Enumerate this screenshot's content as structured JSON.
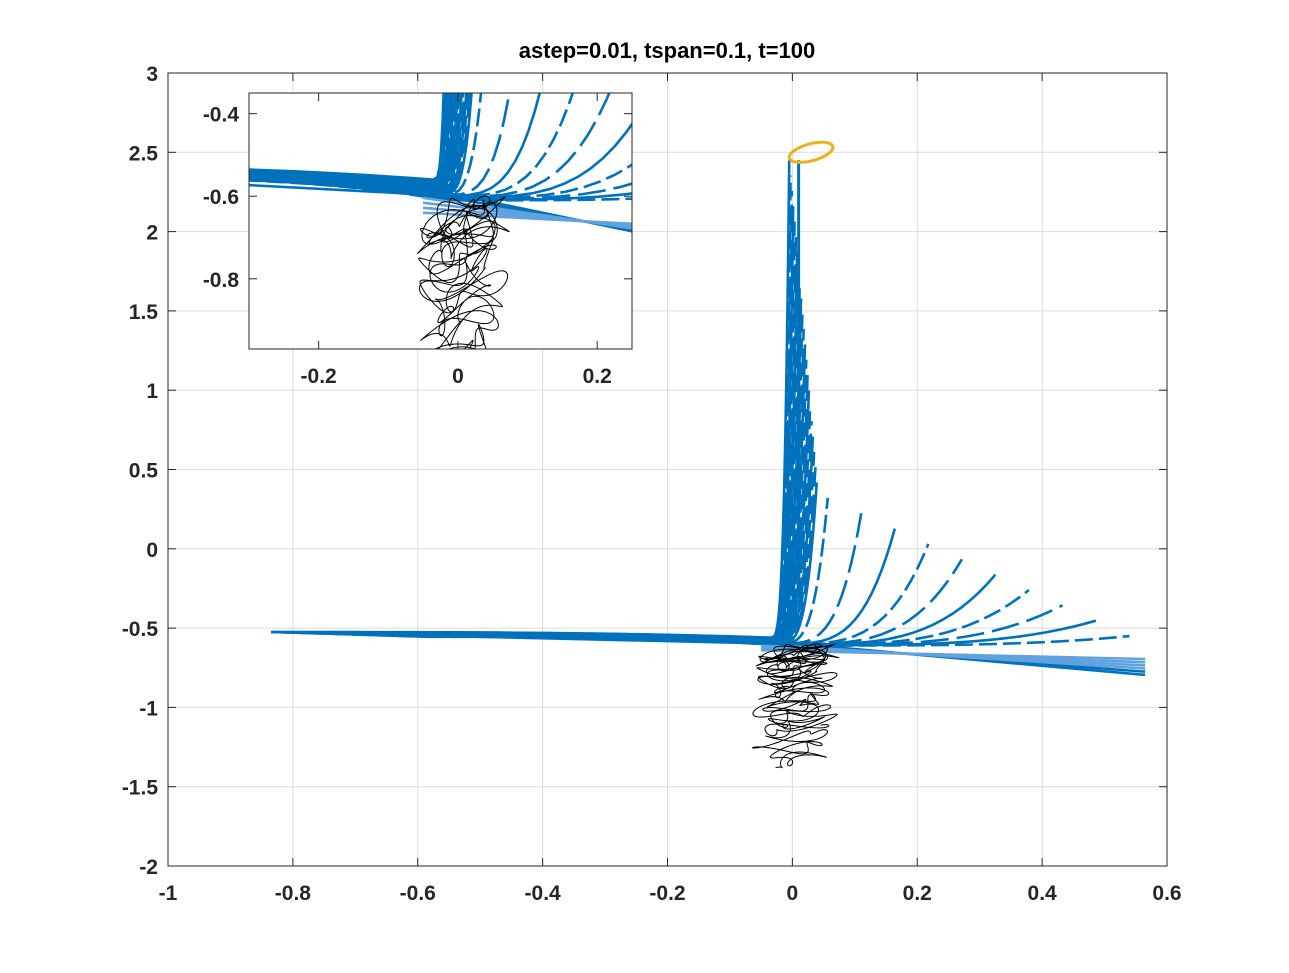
{
  "chart_data": [
    {
      "type": "line",
      "title": "astep=0.01, tspan=0.1, t=100",
      "xlim": [
        -1,
        0.6
      ],
      "ylim": [
        -2,
        3
      ],
      "x_ticks": [
        -1,
        -0.8,
        -0.6,
        -0.4,
        -0.2,
        0,
        0.2,
        0.4,
        0.6
      ],
      "x_tick_labels": [
        "-1",
        "-0.8",
        "-0.6",
        "-0.4",
        "-0.2",
        "0",
        "0.2",
        "0.4",
        "0.6"
      ],
      "y_ticks": [
        -2,
        -1.5,
        -1,
        -0.5,
        0,
        0.5,
        1,
        1.5,
        2,
        2.5,
        3
      ],
      "y_tick_labels": [
        "-2",
        "-1.5",
        "-1",
        "-0.5",
        "0",
        "0.5",
        "1",
        "1.5",
        "2",
        "2.5",
        "3"
      ],
      "grid": true,
      "colors": {
        "fan": "#0072bd",
        "fan_light": "#5fa2dd",
        "loop": "#edb120",
        "attractor": "#000000"
      },
      "series": [
        {
          "style": "fan",
          "center": [
            0.01,
            -0.62
          ],
          "long_left": [
            -0.835,
            -0.525
          ],
          "long_right": [
            0.565,
            -0.775
          ]
        },
        {
          "style": "loop",
          "center": [
            0.03,
            2.5
          ],
          "rx": 0.035,
          "ry": 0.055
        },
        {
          "style": "attractor",
          "center": [
            0.005,
            -1.2
          ],
          "y_range": [
            -1.68,
            -0.65
          ]
        }
      ]
    },
    {
      "type": "line",
      "title": "",
      "xlim": [
        -0.3,
        0.25
      ],
      "ylim": [
        -0.97,
        -0.35
      ],
      "x_ticks": [
        -0.2,
        0,
        0.2
      ],
      "x_tick_labels": [
        "-0.2",
        "0",
        "0.2"
      ],
      "y_ticks": [
        -0.8,
        -0.6,
        -0.4
      ],
      "y_tick_labels": [
        "-0.8",
        "-0.6",
        "-0.4"
      ],
      "grid": false
    }
  ]
}
